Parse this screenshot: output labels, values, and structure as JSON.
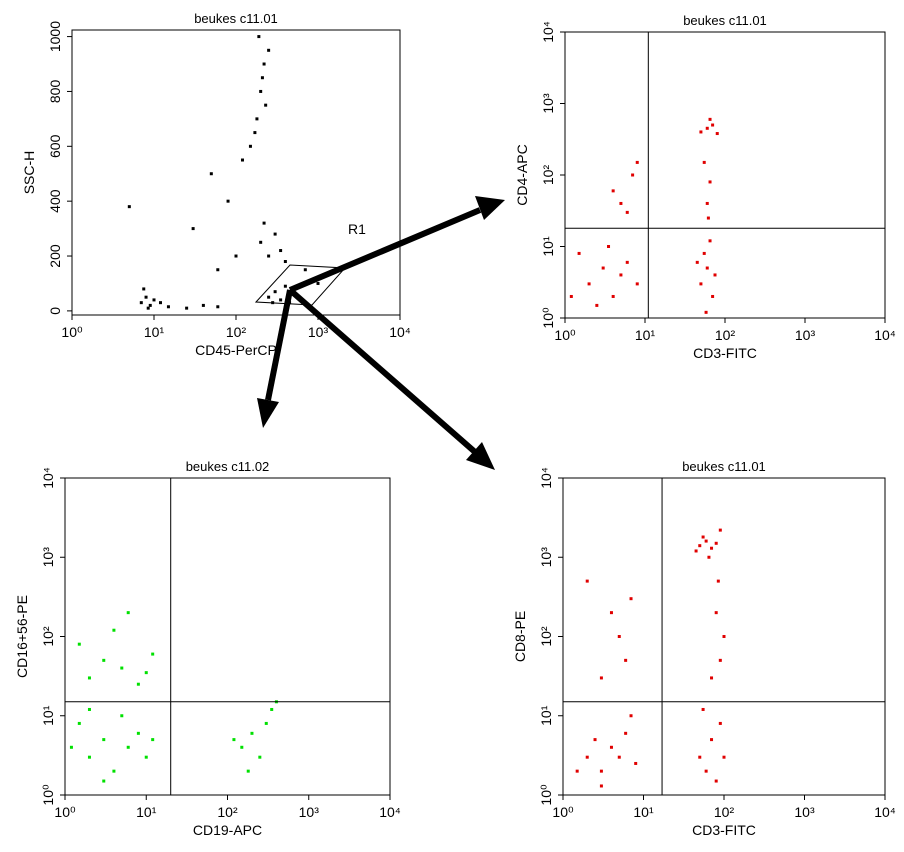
{
  "chart_data": [
    {
      "type": "scatter",
      "title": "beukes  c11.01",
      "x_label": "CD45-PerCP",
      "y_label": "SSC-H",
      "annotation": "R1",
      "x_log": true,
      "y_log": false,
      "color": "#000000",
      "xlim": [
        1,
        10000
      ],
      "ylim": [
        -15,
        1024
      ],
      "xticks": [
        {
          "value": 1,
          "label": "10⁰"
        },
        {
          "value": 10,
          "label": "10¹"
        },
        {
          "value": 100,
          "label": "10²"
        },
        {
          "value": 1000,
          "label": "10³"
        },
        {
          "value": 10000,
          "label": "10⁴"
        }
      ],
      "yticks": [
        0,
        200,
        400,
        600,
        800,
        1000
      ],
      "x": [
        7,
        8,
        9,
        7.5,
        8.5,
        10,
        12,
        15,
        25,
        40,
        60,
        250,
        300,
        350,
        400,
        500,
        280,
        450,
        200,
        250,
        300,
        350,
        220,
        400,
        180,
        200,
        220,
        250,
        190,
        210,
        150,
        120,
        230,
        170,
        30,
        50,
        80,
        100,
        60,
        700,
        1000,
        5
      ],
      "values": [
        30,
        50,
        20,
        80,
        10,
        40,
        30,
        15,
        10,
        20,
        15,
        50,
        70,
        40,
        90,
        60,
        30,
        30,
        250,
        200,
        280,
        220,
        320,
        180,
        700,
        800,
        900,
        950,
        1000,
        850,
        600,
        550,
        750,
        650,
        300,
        500,
        400,
        200,
        150,
        150,
        100,
        380
      ]
    },
    {
      "type": "scatter",
      "title": "beukes  c11.01",
      "x_label": "CD3-FITC",
      "y_label": "CD4-APC",
      "x_log": true,
      "y_log": true,
      "color": "#e00000",
      "xlim": [
        1,
        10000
      ],
      "ylim": [
        1,
        10000
      ],
      "quadrant": {
        "x": 11,
        "y": 18
      },
      "xticks": [
        {
          "value": 1,
          "label": "10⁰"
        },
        {
          "value": 10,
          "label": "10¹"
        },
        {
          "value": 100,
          "label": "10²"
        },
        {
          "value": 1000,
          "label": "10³"
        },
        {
          "value": 10000,
          "label": "10⁴"
        }
      ],
      "yticks": [
        {
          "value": 1,
          "label": "10⁰"
        },
        {
          "value": 10,
          "label": "10¹"
        },
        {
          "value": 100,
          "label": "10²"
        },
        {
          "value": 1000,
          "label": "10³"
        },
        {
          "value": 10000,
          "label": "10⁴"
        }
      ],
      "x": [
        2,
        3,
        4,
        1.5,
        5,
        6,
        2.5,
        8,
        3.5,
        1.2,
        50,
        60,
        70,
        55,
        65,
        58,
        75,
        45,
        50,
        60,
        70,
        80,
        65,
        60,
        65,
        55,
        62,
        5,
        7,
        4,
        8,
        6
      ],
      "values": [
        3,
        5,
        2,
        8,
        4,
        6,
        1.5,
        3,
        10,
        2,
        3,
        5,
        2,
        8,
        12,
        1.2,
        4,
        6,
        400,
        450,
        500,
        380,
        600,
        40,
        80,
        150,
        25,
        40,
        100,
        60,
        150,
        30
      ]
    },
    {
      "type": "scatter",
      "title": "beukes  c11.02",
      "x_label": "CD19-APC",
      "y_label": "CD16+56-PE",
      "x_log": true,
      "y_log": true,
      "color": "#00e000",
      "xlim": [
        1,
        10000
      ],
      "ylim": [
        1,
        10000
      ],
      "quadrant": {
        "x": 20,
        "y": 15
      },
      "xticks": [
        {
          "value": 1,
          "label": "10⁰"
        },
        {
          "value": 10,
          "label": "10¹"
        },
        {
          "value": 100,
          "label": "10²"
        },
        {
          "value": 1000,
          "label": "10³"
        },
        {
          "value": 10000,
          "label": "10⁴"
        }
      ],
      "yticks": [
        {
          "value": 1,
          "label": "10⁰"
        },
        {
          "value": 10,
          "label": "10¹"
        },
        {
          "value": 100,
          "label": "10²"
        },
        {
          "value": 1000,
          "label": "10³"
        },
        {
          "value": 10000,
          "label": "10⁴"
        }
      ],
      "x": [
        2,
        3,
        4,
        1.5,
        6,
        8,
        3,
        10,
        5,
        1.2,
        12,
        2,
        2,
        3,
        5,
        8,
        12,
        1.5,
        4,
        10,
        6,
        150,
        200,
        250,
        300,
        180,
        350,
        120,
        400
      ],
      "values": [
        3,
        5,
        2,
        8,
        4,
        6,
        1.5,
        3,
        10,
        4,
        5,
        12,
        30,
        50,
        40,
        25,
        60,
        80,
        120,
        35,
        200,
        4,
        6,
        3,
        8,
        2,
        12,
        5,
        15
      ]
    },
    {
      "type": "scatter",
      "title": "beukes  c11.01",
      "x_label": "CD3-FITC",
      "y_label": "CD8-PE",
      "x_log": true,
      "y_log": true,
      "color": "#e00000",
      "xlim": [
        1,
        10000
      ],
      "ylim": [
        1,
        10000
      ],
      "quadrant": {
        "x": 17,
        "y": 15
      },
      "xticks": [
        {
          "value": 1,
          "label": "10⁰"
        },
        {
          "value": 10,
          "label": "10¹"
        },
        {
          "value": 100,
          "label": "10²"
        },
        {
          "value": 1000,
          "label": "10³"
        },
        {
          "value": 10000,
          "label": "10⁴"
        }
      ],
      "yticks": [
        {
          "value": 1,
          "label": "10⁰"
        },
        {
          "value": 10,
          "label": "10¹"
        },
        {
          "value": 100,
          "label": "10²"
        },
        {
          "value": 1000,
          "label": "10³"
        },
        {
          "value": 10000,
          "label": "10⁴"
        }
      ],
      "x": [
        50,
        60,
        70,
        55,
        80,
        45,
        90,
        65,
        2,
        3,
        4,
        2.5,
        5,
        6,
        1.5,
        8,
        3,
        7,
        50,
        60,
        70,
        80,
        90,
        55,
        100,
        3,
        5,
        7,
        4,
        6,
        2,
        80,
        90,
        70,
        100,
        85
      ],
      "values": [
        1400,
        1600,
        1300,
        1800,
        1500,
        1200,
        2200,
        1000,
        3,
        2,
        4,
        5,
        3,
        6,
        2,
        2.5,
        1.3,
        10,
        3,
        2,
        5,
        1.5,
        8,
        12,
        3,
        30,
        100,
        300,
        200,
        50,
        500,
        200,
        50,
        30,
        100,
        500
      ]
    }
  ]
}
